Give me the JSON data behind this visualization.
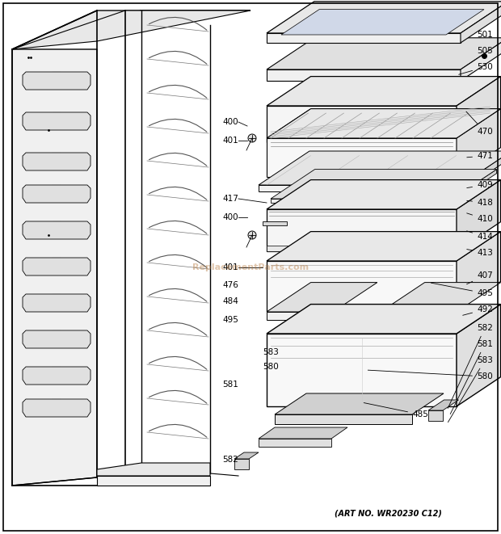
{
  "art_no": "(ART NO. WR20230 C12)",
  "watermark": "ReplacementParts.com",
  "bg_color": "#ffffff",
  "fig_width": 6.2,
  "fig_height": 6.61,
  "dpi": 100,
  "label_fontsize": 7.5,
  "watermark_fontsize": 8,
  "watermark_alpha": 0.4,
  "watermark_color": "#b07030",
  "art_no_fontsize": 7
}
